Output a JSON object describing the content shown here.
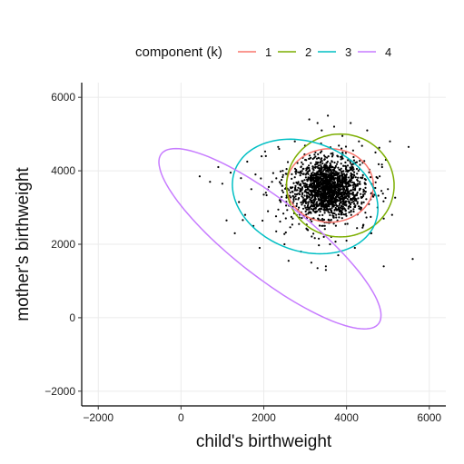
{
  "chart_data": {
    "type": "scatter",
    "title": "",
    "xlabel": "child's birthweight",
    "ylabel": "mother's birthweight",
    "xlim": [
      -2400,
      6400
    ],
    "ylim": [
      -2400,
      6400
    ],
    "x_ticks": [
      -2000,
      0,
      2000,
      4000,
      6000
    ],
    "y_ticks": [
      -2000,
      0,
      2000,
      4000,
      6000
    ],
    "x_tick_labels": [
      "−2000",
      "0",
      "2000",
      "4000",
      "6000"
    ],
    "y_tick_labels": [
      "−2000",
      "0",
      "2000",
      "4000",
      "6000"
    ],
    "grid": true,
    "legend": {
      "title": "component (k)",
      "placement": "top",
      "entries": [
        {
          "label": "1",
          "color": "#F8766D"
        },
        {
          "label": "2",
          "color": "#7CAE00"
        },
        {
          "label": "3",
          "color": "#00BFC4"
        },
        {
          "label": "4",
          "color": "#C77CFF"
        }
      ]
    },
    "scatter_summary": {
      "n_points": 1800,
      "center": [
        3550,
        3500
      ],
      "note_spread": "dense cloud centred near (3550, 3500)"
    },
    "scatter_points": [
      [
        450,
        3850
      ],
      [
        700,
        3700
      ],
      [
        900,
        4100
      ],
      [
        1000,
        3650
      ],
      [
        1100,
        2650
      ],
      [
        1200,
        3950
      ],
      [
        1300,
        2300
      ],
      [
        1400,
        3150
      ],
      [
        1450,
        3800
      ],
      [
        1550,
        2800
      ],
      [
        1600,
        4250
      ],
      [
        1700,
        3500
      ],
      [
        1750,
        2500
      ],
      [
        1800,
        3900
      ],
      [
        1900,
        1900
      ],
      [
        2000,
        3350
      ],
      [
        2050,
        4400
      ],
      [
        2100,
        2900
      ],
      [
        2200,
        3700
      ],
      [
        2300,
        2350
      ],
      [
        2350,
        4650
      ],
      [
        2400,
        3200
      ],
      [
        2500,
        2000
      ],
      [
        2550,
        4050
      ],
      [
        2600,
        1550
      ],
      [
        2650,
        3550
      ],
      [
        2700,
        2700
      ],
      [
        2750,
        4800
      ],
      [
        2800,
        3100
      ],
      [
        2900,
        1800
      ],
      [
        3000,
        4300
      ],
      [
        3050,
        2400
      ],
      [
        3100,
        5400
      ],
      [
        3150,
        1500
      ],
      [
        3200,
        3800
      ],
      [
        3300,
        1350
      ],
      [
        3400,
        5100
      ],
      [
        3450,
        2200
      ],
      [
        3500,
        1400
      ],
      [
        3550,
        5500
      ],
      [
        3600,
        2000
      ],
      [
        3700,
        5200
      ],
      [
        3800,
        1700
      ],
      [
        3900,
        4950
      ],
      [
        4000,
        2100
      ],
      [
        4100,
        5300
      ],
      [
        4200,
        1900
      ],
      [
        4300,
        4800
      ],
      [
        4400,
        2500
      ],
      [
        4500,
        5100
      ],
      [
        4600,
        2300
      ],
      [
        4700,
        4500
      ],
      [
        4750,
        3000
      ],
      [
        4800,
        3850
      ],
      [
        4900,
        2700
      ],
      [
        4950,
        4300
      ],
      [
        5000,
        3500
      ],
      [
        5050,
        4800
      ],
      [
        5100,
        2800
      ],
      [
        5500,
        4650
      ],
      [
        5600,
        1600
      ],
      [
        4900,
        1400
      ],
      [
        3500,
        1300
      ],
      [
        3300,
        5300
      ]
    ],
    "ellipses": [
      {
        "component": "1",
        "color": "#F8766D",
        "center": [
          3600,
          3600
        ],
        "semi_axes": [
          1050,
          1000
        ],
        "angle_deg": 0
      },
      {
        "component": "2",
        "color": "#7CAE00",
        "center": [
          3850,
          3600
        ],
        "semi_axes": [
          1300,
          1400
        ],
        "angle_deg": 0
      },
      {
        "component": "3",
        "color": "#00BFC4",
        "center": [
          3000,
          3300
        ],
        "semi_axes": [
          1850,
          1450
        ],
        "angle_deg": -30
      },
      {
        "component": "4",
        "color": "#C77CFF",
        "center": [
          2150,
          2150
        ],
        "semi_axes": [
          3500,
          990
        ],
        "angle_deg": -42
      }
    ]
  }
}
